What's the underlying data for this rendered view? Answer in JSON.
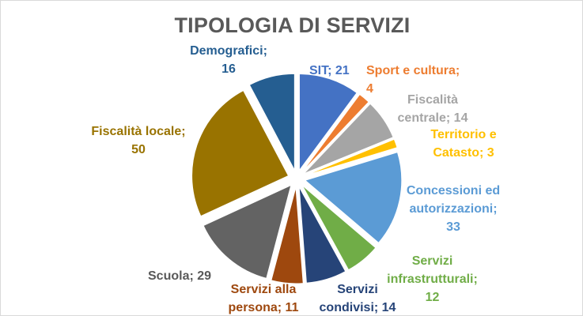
{
  "chart_data": {
    "type": "pie",
    "title": "TIPOLOGIA DI SERVIZI",
    "slices": [
      {
        "label": "SIT",
        "value": 21,
        "color": "#4472c4",
        "label_lines": [
          "SIT; 21"
        ]
      },
      {
        "label": "Sport e cultura",
        "value": 4,
        "color": "#ed7d31",
        "label_lines": [
          "Sport e cultura;",
          "4"
        ]
      },
      {
        "label": "Fiscalità centrale",
        "value": 14,
        "color": "#a5a5a5",
        "label_lines": [
          "Fiscalità",
          "centrale; 14"
        ]
      },
      {
        "label": "Territorio e Catasto",
        "value": 3,
        "color": "#ffc000",
        "label_lines": [
          "Territorio e",
          "Catasto; 3"
        ]
      },
      {
        "label": "Concessioni ed autorizzazioni",
        "value": 33,
        "color": "#5b9bd5",
        "label_lines": [
          "Concessioni ed",
          "autorizzazioni;",
          "33"
        ]
      },
      {
        "label": "Servizi infrastrutturali",
        "value": 12,
        "color": "#70ad47",
        "label_lines": [
          "Servizi",
          "infrastrutturali;",
          "12"
        ]
      },
      {
        "label": "Servizi condivisi",
        "value": 14,
        "color": "#264478",
        "label_lines": [
          "Servizi",
          "condivisi; 14"
        ]
      },
      {
        "label": "Servizi alla persona",
        "value": 11,
        "color": "#9e480e",
        "label_lines": [
          "Servizi alla",
          "persona; 11"
        ]
      },
      {
        "label": "Scuola",
        "value": 29,
        "color": "#636363",
        "label_lines": [
          "Scuola; 29"
        ]
      },
      {
        "label": "Fiscalità locale",
        "value": 50,
        "color": "#997300",
        "label_lines": [
          "Fiscalità locale;",
          "50"
        ]
      },
      {
        "label": "Demografici",
        "value": 16,
        "color": "#255e91",
        "label_lines": [
          "Demografici;",
          "16"
        ]
      }
    ],
    "exploded": true,
    "legend": "none"
  }
}
